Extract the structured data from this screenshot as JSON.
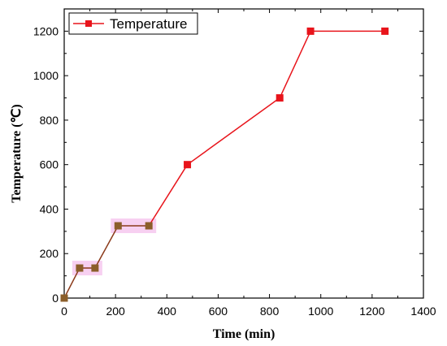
{
  "chart_data": {
    "type": "line",
    "xlabel": "Time (min)",
    "ylabel": "Temperature (℃)",
    "xlim": [
      0,
      1400
    ],
    "ylim": [
      0,
      1300
    ],
    "xticks": [
      0,
      200,
      400,
      600,
      800,
      1000,
      1200,
      1400
    ],
    "yticks": [
      0,
      200,
      400,
      600,
      800,
      1000,
      1200
    ],
    "grid": false,
    "legend_position": "top-left",
    "series": [
      {
        "name": "Temperature",
        "color": "#e8141b",
        "marker": "square",
        "x": [
          0,
          60,
          120,
          210,
          330,
          480,
          840,
          960,
          1250
        ],
        "y": [
          0,
          135,
          135,
          325,
          325,
          600,
          900,
          1200,
          1200
        ]
      }
    ],
    "early_segment": {
      "until_x": 330,
      "line_color": "#8b3a1a",
      "marker_color": "#8b5e2a",
      "highlight_color": "#f6c8ee"
    }
  }
}
